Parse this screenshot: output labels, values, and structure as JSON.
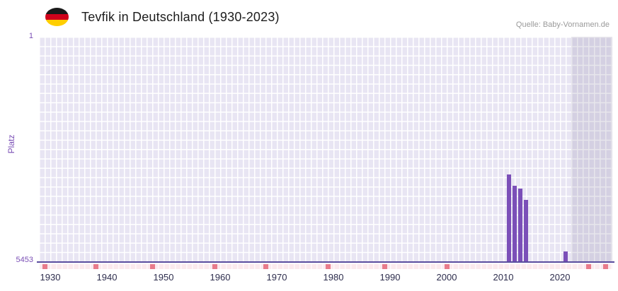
{
  "header": {
    "title": "Tevfik in Deutschland (1930-2023)",
    "source": "Quelle: Baby-Vornamen.de",
    "flag_icon": "german-flag",
    "flag_colors": [
      "#1a1a1a",
      "#d0021b",
      "#ffce00"
    ]
  },
  "chart_data": {
    "type": "bar",
    "title": "Tevfik in Deutschland (1930-2023)",
    "xlabel": "",
    "ylabel": "Platz",
    "y_axis": {
      "min": 1,
      "max": 5453,
      "inverted": true,
      "top_tick_label": "1",
      "bottom_tick_label": "5453"
    },
    "x_axis": {
      "tick_labels": [
        1930,
        1940,
        1950,
        1960,
        1970,
        1980,
        1990,
        2000,
        2010,
        2020
      ],
      "plot_range": [
        1928,
        2029.25
      ]
    },
    "bars": [
      {
        "year": 2011,
        "rank": 3340
      },
      {
        "year": 2012,
        "rank": 3620
      },
      {
        "year": 2013,
        "rank": 3690
      },
      {
        "year": 2014,
        "rank": 3960
      },
      {
        "year": 2021,
        "rank": 5210
      }
    ],
    "no_data_marker_years": [
      1929,
      1938,
      1948,
      1959,
      1968,
      1979,
      1989,
      2000,
      2025,
      2028
    ],
    "highlight_band": {
      "start": 2022,
      "end": 2029.25
    },
    "grid": true,
    "legend": false,
    "colors": {
      "bar": "#7b4fb8",
      "axis_line": "#5a4d9e",
      "plot_background": "#e8e5f3",
      "grid_line": "#ffffff",
      "highlight_band": "rgba(122,118,150,0.18)",
      "no_data_strip": "#fbe9ed",
      "no_data_marker": "#e87b8b",
      "x_tick_label": "#2d2d4d",
      "y_tick_label": "#7a4eb5",
      "title": "#1c1c1c",
      "source": "#9a9a9a"
    }
  }
}
